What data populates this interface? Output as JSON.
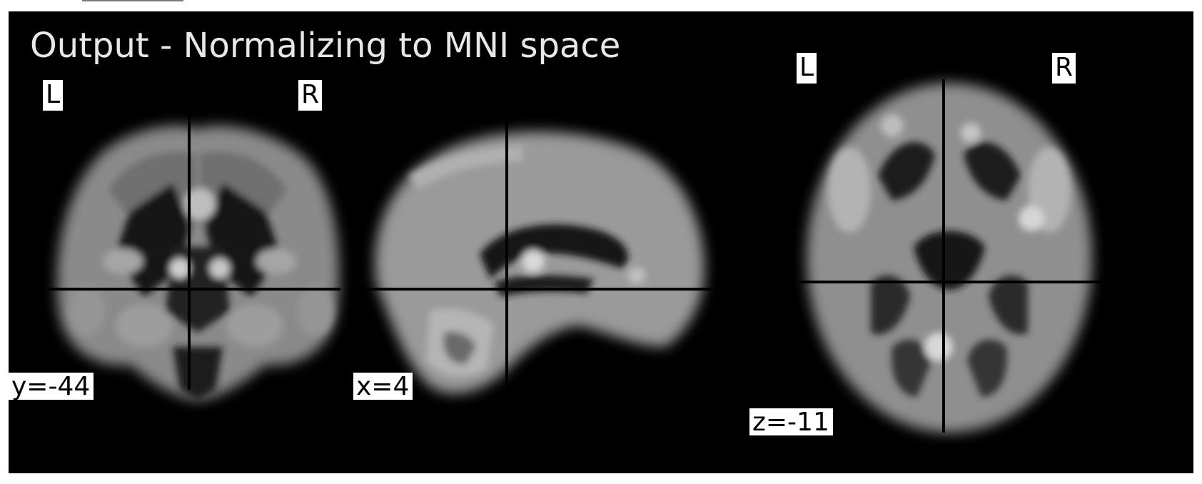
{
  "title": "Output - Normalizing to MNI space",
  "views": {
    "coronal": {
      "left_label": "L",
      "right_label": "R",
      "coord_label": "y=-44"
    },
    "sagittal": {
      "coord_label": "x=4"
    },
    "axial": {
      "left_label": "L",
      "right_label": "R",
      "coord_label": "z=-11"
    }
  },
  "colors": {
    "background": "#000000",
    "crosshair": "#000000",
    "label_bg": "#ffffff",
    "title_text": "#e8e8e8"
  }
}
